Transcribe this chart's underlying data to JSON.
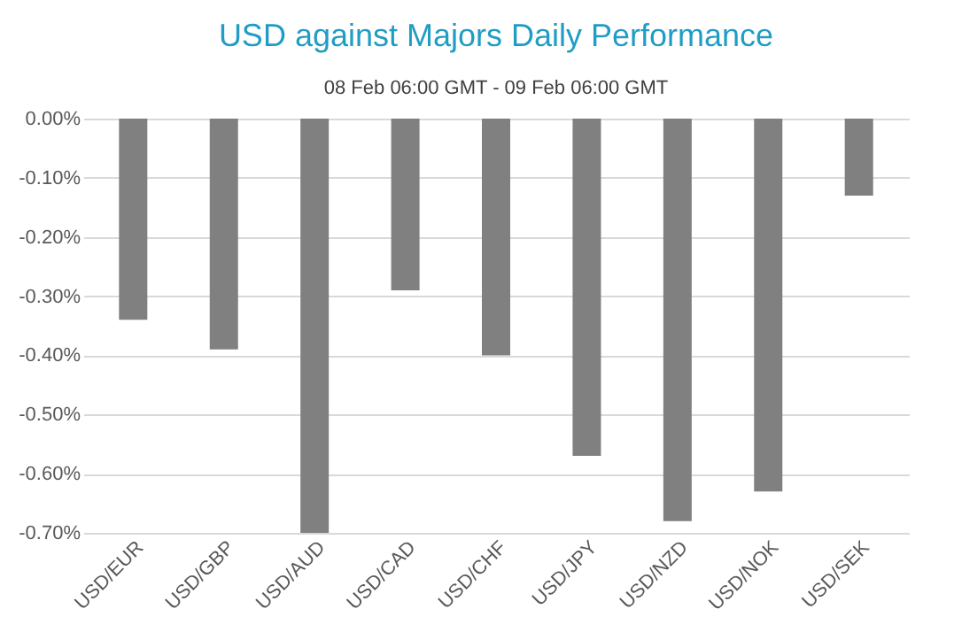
{
  "chart_data": {
    "type": "bar",
    "title": "USD against Majors Daily Performance",
    "subtitle": "08 Feb 06:00 GMT - 09 Feb 06:00 GMT",
    "categories": [
      "USD/EUR",
      "USD/GBP",
      "USD/AUD",
      "USD/CAD",
      "USD/CHF",
      "USD/JPY",
      "USD/NZD",
      "USD/NOK",
      "USD/SEK"
    ],
    "values": [
      -0.34,
      -0.39,
      -0.7,
      -0.29,
      -0.4,
      -0.57,
      -0.68,
      -0.63,
      -0.13
    ],
    "color": "#808080",
    "ylim": [
      -0.7,
      0
    ],
    "yticks": [
      {
        "value": 0,
        "label": "0.00%"
      },
      {
        "value": -0.1,
        "label": "-0.10%"
      },
      {
        "value": -0.2,
        "label": "-0.20%"
      },
      {
        "value": -0.3,
        "label": "-0.30%"
      },
      {
        "value": -0.4,
        "label": "-0.40%"
      },
      {
        "value": -0.5,
        "label": "-0.50%"
      },
      {
        "value": -0.6,
        "label": "-0.60%"
      },
      {
        "value": -0.7,
        "label": "-0.70%"
      }
    ],
    "grid": "y"
  }
}
